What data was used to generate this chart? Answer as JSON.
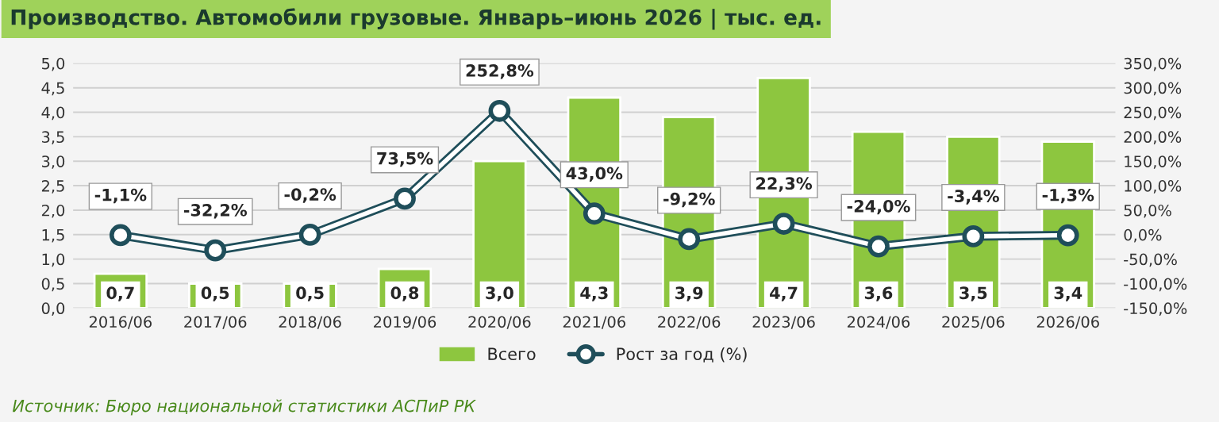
{
  "chart_data": {
    "type": "bar",
    "title": "Производство. Автомобили грузовые. Январь–июнь 2026 | тыс. ед.",
    "annotations": [
      "Источник: Бюро национальной статистики АСПиР РК"
    ],
    "categories": [
      "2016/06",
      "2017/06",
      "2018/06",
      "2019/06",
      "2020/06",
      "2021/06",
      "2022/06",
      "2023/06",
      "2024/06",
      "2025/06",
      "2026/06"
    ],
    "series": [
      {
        "name": "Всего",
        "color": "#8dc63f",
        "values": [
          0.7,
          0.5,
          0.5,
          0.8,
          3.0,
          4.3,
          3.9,
          4.7,
          3.6,
          3.5,
          3.4
        ],
        "value_labels": [
          "0,7",
          "0,5",
          "0,5",
          "0,8",
          "3,0",
          "4,3",
          "3,9",
          "4,7",
          "3,6",
          "3,5",
          "3,4"
        ]
      },
      {
        "name": "Рост за год (%)",
        "type": "line",
        "axis": "y2",
        "color": "#ffffff",
        "marker": "circle",
        "values": [
          -1.1,
          -32.2,
          -0.2,
          73.5,
          252.8,
          43.0,
          -9.2,
          22.3,
          -24.0,
          -3.4,
          -1.3
        ],
        "value_labels": [
          "-1,1%",
          "-32,2%",
          "-0,2%",
          "73,5%",
          "252,8%",
          "43,0%",
          "-9,2%",
          "22,3%",
          "-24,0%",
          "-3,4%",
          "-1,3%"
        ]
      }
    ],
    "ylim": [
      0,
      5
    ],
    "yticks": [
      {
        "value": 0,
        "label": "0,0"
      },
      {
        "value": 0.5,
        "label": "0,5"
      },
      {
        "value": 1,
        "label": "1,0"
      },
      {
        "value": 1.5,
        "label": "1,5"
      },
      {
        "value": 2,
        "label": "2,0"
      },
      {
        "value": 2.5,
        "label": "2,5"
      },
      {
        "value": 3,
        "label": "3,0"
      },
      {
        "value": 3.5,
        "label": "3,5"
      },
      {
        "value": 4,
        "label": "4,0"
      },
      {
        "value": 4.5,
        "label": "4,5"
      },
      {
        "value": 5,
        "label": "5,0"
      }
    ],
    "y2lim": [
      -150,
      350
    ],
    "y2ticks": [
      {
        "value": -150,
        "label": "-150,0%"
      },
      {
        "value": -100,
        "label": "-100,0%"
      },
      {
        "value": -50,
        "label": "-50,0%"
      },
      {
        "value": 0,
        "label": "0,0%"
      },
      {
        "value": 50,
        "label": "50,0%"
      },
      {
        "value": 100,
        "label": "100,0%"
      },
      {
        "value": 150,
        "label": "150,0%"
      },
      {
        "value": 200,
        "label": "200,0%"
      },
      {
        "value": 250,
        "label": "250,0%"
      },
      {
        "value": 300,
        "label": "300,0%"
      },
      {
        "value": 350,
        "label": "350,0%"
      }
    ],
    "grid": "y",
    "legend": "bottom"
  }
}
